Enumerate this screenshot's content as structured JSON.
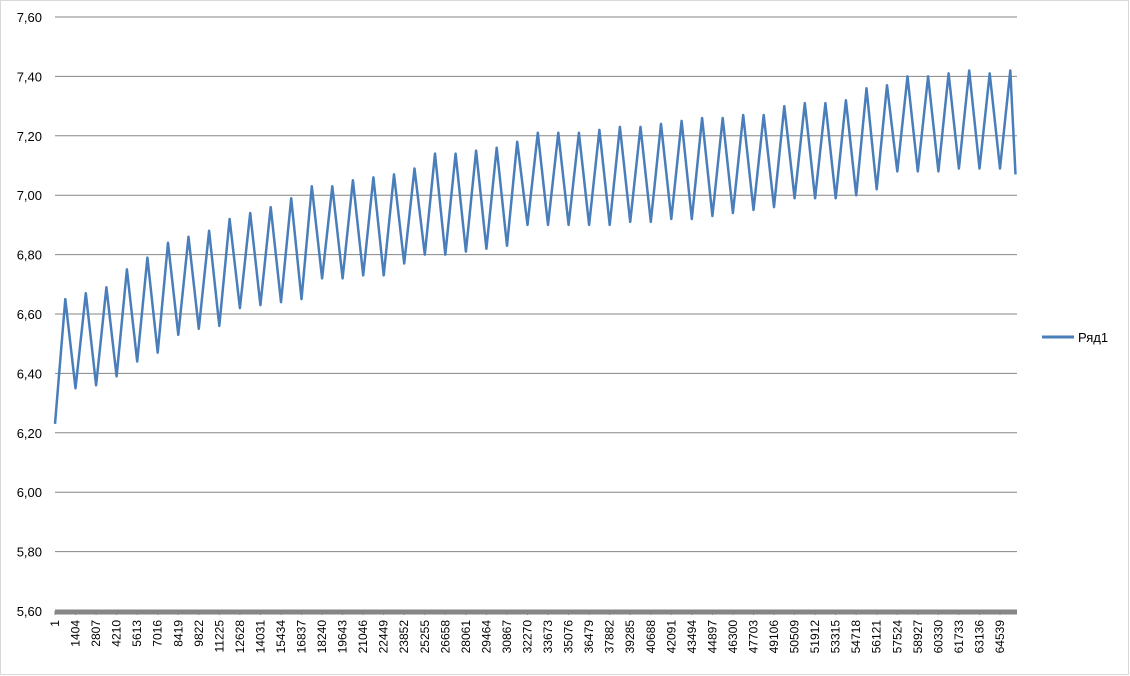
{
  "chart_data": {
    "type": "line",
    "x": [
      1,
      702,
      1404,
      2105,
      2807,
      3508,
      4210,
      4911,
      5613,
      6314,
      7016,
      7717,
      8419,
      9120,
      9822,
      10523,
      11225,
      11926,
      12628,
      13329,
      14031,
      14732,
      15434,
      16135,
      16837,
      17538,
      18240,
      18941,
      19643,
      20344,
      21046,
      21747,
      22449,
      23150,
      23852,
      24553,
      25255,
      25956,
      26658,
      27359,
      28061,
      28762,
      29464,
      30165,
      30867,
      31568,
      32270,
      32971,
      33673,
      34374,
      35076,
      35777,
      36479,
      37180,
      37882,
      38583,
      39285,
      39986,
      40688,
      41389,
      42091,
      42792,
      43494,
      44195,
      44897,
      45598,
      46300,
      47001,
      47703,
      48404,
      49106,
      49807,
      50509,
      51210,
      51912,
      52613,
      53315,
      54016,
      54718,
      55419,
      56121,
      56822,
      57524,
      58225,
      58927,
      59628,
      60330,
      61031,
      61733,
      62434,
      63136,
      63837,
      64539,
      65240,
      65600
    ],
    "series": [
      {
        "name": "Ряд1",
        "color": "#4a7ebb",
        "values": [
          6.23,
          6.65,
          6.35,
          6.67,
          6.36,
          6.69,
          6.39,
          6.75,
          6.44,
          6.79,
          6.47,
          6.84,
          6.53,
          6.86,
          6.55,
          6.88,
          6.56,
          6.92,
          6.62,
          6.94,
          6.63,
          6.96,
          6.64,
          6.99,
          6.65,
          7.03,
          6.72,
          7.03,
          6.72,
          7.05,
          6.73,
          7.06,
          6.73,
          7.07,
          6.77,
          7.09,
          6.8,
          7.14,
          6.8,
          7.14,
          6.81,
          7.15,
          6.82,
          7.16,
          6.83,
          7.18,
          6.9,
          7.21,
          6.9,
          7.21,
          6.9,
          7.21,
          6.9,
          7.22,
          6.9,
          7.23,
          6.91,
          7.23,
          6.91,
          7.24,
          6.92,
          7.25,
          6.92,
          7.26,
          6.93,
          7.26,
          6.94,
          7.27,
          6.95,
          7.27,
          6.96,
          7.3,
          6.99,
          7.31,
          6.99,
          7.31,
          6.99,
          7.32,
          7.0,
          7.36,
          7.02,
          7.37,
          7.08,
          7.4,
          7.08,
          7.4,
          7.08,
          7.41,
          7.09,
          7.42,
          7.09,
          7.41,
          7.09,
          7.42,
          7.07
        ]
      }
    ],
    "xlim": [
      1,
      65700
    ],
    "xticks": [
      1,
      1404,
      2807,
      4210,
      5613,
      7016,
      8419,
      9822,
      11225,
      12628,
      14031,
      15434,
      16837,
      18240,
      19643,
      21046,
      22449,
      23852,
      25255,
      26658,
      28061,
      29464,
      30867,
      32270,
      33673,
      35076,
      36479,
      37882,
      39285,
      40688,
      42091,
      43494,
      44897,
      46300,
      47703,
      49106,
      50509,
      51912,
      53315,
      54718,
      56121,
      57524,
      58927,
      60330,
      61733,
      63136,
      64539
    ],
    "ylim": [
      5.6,
      7.6
    ],
    "yticks": [
      {
        "value": 5.6,
        "label": "5,60"
      },
      {
        "value": 5.8,
        "label": "5,80"
      },
      {
        "value": 6.0,
        "label": "6,00"
      },
      {
        "value": 6.2,
        "label": "6,20"
      },
      {
        "value": 6.4,
        "label": "6,40"
      },
      {
        "value": 6.6,
        "label": "6,60"
      },
      {
        "value": 6.8,
        "label": "6,80"
      },
      {
        "value": 7.0,
        "label": "7,00"
      },
      {
        "value": 7.2,
        "label": "7,20"
      },
      {
        "value": 7.4,
        "label": "7,40"
      },
      {
        "value": 7.6,
        "label": "7,60"
      }
    ],
    "grid": true,
    "legend": "right"
  }
}
